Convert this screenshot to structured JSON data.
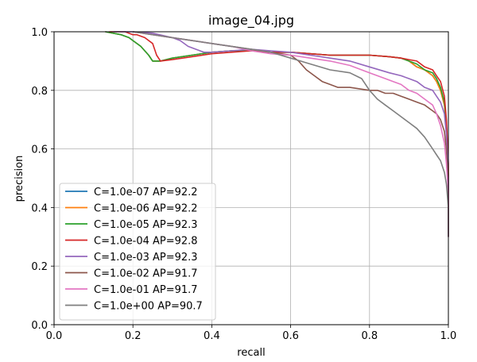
{
  "chart_data": {
    "type": "line",
    "title": "image_04.jpg",
    "xlabel": "recall",
    "ylabel": "precision",
    "xlim": [
      0.0,
      1.0
    ],
    "ylim": [
      0.0,
      1.0
    ],
    "xticks": [
      "0.0",
      "0.2",
      "0.4",
      "0.6",
      "0.8",
      "1.0"
    ],
    "yticks": [
      "0.0",
      "0.2",
      "0.4",
      "0.6",
      "0.8",
      "1.0"
    ],
    "grid": true,
    "legend_position": "lower-left",
    "series": [
      {
        "name": "C=1.0e-07 AP=92.2",
        "color": "#1f77b4",
        "x": [
          0.13,
          0.17,
          0.19,
          0.2,
          0.22,
          0.24,
          0.25,
          0.27,
          0.3,
          0.35,
          0.4,
          0.45,
          0.5,
          0.55,
          0.6,
          0.65,
          0.7,
          0.75,
          0.8,
          0.85,
          0.88,
          0.9,
          0.92,
          0.94,
          0.96,
          0.97,
          0.98,
          0.99,
          0.995,
          1.0,
          1.0
        ],
        "y": [
          1.0,
          0.99,
          0.98,
          0.97,
          0.95,
          0.92,
          0.9,
          0.9,
          0.91,
          0.92,
          0.93,
          0.935,
          0.935,
          0.93,
          0.93,
          0.925,
          0.92,
          0.92,
          0.92,
          0.915,
          0.91,
          0.9,
          0.88,
          0.87,
          0.85,
          0.83,
          0.8,
          0.75,
          0.68,
          0.5,
          0.3
        ]
      },
      {
        "name": "C=1.0e-06 AP=92.2",
        "color": "#ff7f0e",
        "x": [
          0.13,
          0.17,
          0.19,
          0.2,
          0.22,
          0.24,
          0.25,
          0.27,
          0.3,
          0.35,
          0.4,
          0.45,
          0.5,
          0.55,
          0.6,
          0.65,
          0.7,
          0.75,
          0.8,
          0.85,
          0.88,
          0.9,
          0.92,
          0.94,
          0.96,
          0.97,
          0.98,
          0.99,
          0.995,
          1.0,
          1.0
        ],
        "y": [
          1.0,
          0.99,
          0.98,
          0.97,
          0.95,
          0.92,
          0.9,
          0.9,
          0.91,
          0.92,
          0.93,
          0.935,
          0.935,
          0.93,
          0.93,
          0.925,
          0.92,
          0.92,
          0.92,
          0.915,
          0.91,
          0.9,
          0.88,
          0.87,
          0.85,
          0.83,
          0.8,
          0.75,
          0.68,
          0.5,
          0.3
        ]
      },
      {
        "name": "C=1.0e-05 AP=92.3",
        "color": "#2ca02c",
        "x": [
          0.13,
          0.17,
          0.19,
          0.2,
          0.22,
          0.24,
          0.25,
          0.27,
          0.3,
          0.35,
          0.4,
          0.45,
          0.5,
          0.55,
          0.6,
          0.65,
          0.7,
          0.75,
          0.8,
          0.85,
          0.88,
          0.9,
          0.92,
          0.94,
          0.96,
          0.97,
          0.98,
          0.99,
          0.995,
          1.0,
          1.0
        ],
        "y": [
          1.0,
          0.99,
          0.98,
          0.97,
          0.95,
          0.92,
          0.9,
          0.9,
          0.91,
          0.92,
          0.93,
          0.935,
          0.935,
          0.93,
          0.93,
          0.925,
          0.92,
          0.92,
          0.92,
          0.915,
          0.91,
          0.9,
          0.89,
          0.87,
          0.86,
          0.84,
          0.81,
          0.76,
          0.69,
          0.5,
          0.3
        ]
      },
      {
        "name": "C=1.0e-04 AP=92.8",
        "color": "#d62728",
        "x": [
          0.14,
          0.18,
          0.2,
          0.21,
          0.23,
          0.25,
          0.26,
          0.27,
          0.3,
          0.35,
          0.4,
          0.45,
          0.5,
          0.55,
          0.6,
          0.65,
          0.7,
          0.75,
          0.8,
          0.85,
          0.88,
          0.9,
          0.92,
          0.94,
          0.96,
          0.97,
          0.98,
          0.99,
          0.995,
          1.0,
          1.0
        ],
        "y": [
          1.0,
          1.0,
          0.99,
          0.99,
          0.98,
          0.96,
          0.92,
          0.9,
          0.905,
          0.915,
          0.925,
          0.93,
          0.935,
          0.93,
          0.93,
          0.925,
          0.92,
          0.92,
          0.92,
          0.915,
          0.91,
          0.905,
          0.9,
          0.88,
          0.87,
          0.85,
          0.83,
          0.78,
          0.7,
          0.55,
          0.3
        ]
      },
      {
        "name": "C=1.0e-03 AP=92.3",
        "color": "#9467bd",
        "x": [
          0.15,
          0.2,
          0.25,
          0.3,
          0.32,
          0.34,
          0.36,
          0.38,
          0.4,
          0.45,
          0.5,
          0.55,
          0.6,
          0.65,
          0.7,
          0.75,
          0.8,
          0.85,
          0.88,
          0.9,
          0.92,
          0.94,
          0.96,
          0.97,
          0.98,
          0.99,
          0.995,
          1.0,
          1.0
        ],
        "y": [
          1.0,
          1.0,
          0.995,
          0.98,
          0.97,
          0.95,
          0.94,
          0.93,
          0.93,
          0.935,
          0.94,
          0.935,
          0.93,
          0.92,
          0.91,
          0.9,
          0.88,
          0.86,
          0.85,
          0.84,
          0.83,
          0.81,
          0.8,
          0.78,
          0.76,
          0.72,
          0.65,
          0.5,
          0.3
        ]
      },
      {
        "name": "C=1.0e-02 AP=91.7",
        "color": "#8c564b",
        "x": [
          0.2,
          0.3,
          0.4,
          0.45,
          0.5,
          0.55,
          0.6,
          0.62,
          0.64,
          0.66,
          0.68,
          0.7,
          0.72,
          0.75,
          0.8,
          0.82,
          0.84,
          0.86,
          0.88,
          0.9,
          0.92,
          0.94,
          0.96,
          0.97,
          0.98,
          0.99,
          0.995,
          1.0,
          1.0
        ],
        "y": [
          1.0,
          0.98,
          0.96,
          0.95,
          0.94,
          0.93,
          0.92,
          0.9,
          0.87,
          0.85,
          0.83,
          0.82,
          0.81,
          0.81,
          0.8,
          0.8,
          0.79,
          0.79,
          0.78,
          0.77,
          0.76,
          0.75,
          0.73,
          0.72,
          0.7,
          0.66,
          0.6,
          0.45,
          0.3
        ]
      },
      {
        "name": "C=1.0e-01 AP=91.7",
        "color": "#e377c2",
        "x": [
          0.2,
          0.3,
          0.4,
          0.45,
          0.5,
          0.55,
          0.6,
          0.65,
          0.7,
          0.75,
          0.8,
          0.82,
          0.84,
          0.86,
          0.88,
          0.9,
          0.92,
          0.94,
          0.95,
          0.96,
          0.97,
          0.98,
          0.99,
          0.995,
          1.0,
          1.0
        ],
        "y": [
          1.0,
          0.98,
          0.96,
          0.95,
          0.935,
          0.925,
          0.92,
          0.91,
          0.9,
          0.885,
          0.86,
          0.85,
          0.84,
          0.83,
          0.82,
          0.8,
          0.79,
          0.77,
          0.76,
          0.75,
          0.72,
          0.68,
          0.62,
          0.55,
          0.45,
          0.3
        ]
      },
      {
        "name": "C=1.0e+00 AP=90.7",
        "color": "#7f7f7f",
        "x": [
          0.2,
          0.3,
          0.4,
          0.45,
          0.5,
          0.55,
          0.6,
          0.65,
          0.7,
          0.75,
          0.78,
          0.8,
          0.82,
          0.84,
          0.86,
          0.88,
          0.9,
          0.92,
          0.94,
          0.95,
          0.96,
          0.97,
          0.98,
          0.99,
          0.995,
          1.0,
          1.0
        ],
        "y": [
          1.0,
          0.98,
          0.96,
          0.95,
          0.94,
          0.93,
          0.91,
          0.89,
          0.87,
          0.86,
          0.84,
          0.8,
          0.77,
          0.75,
          0.73,
          0.71,
          0.69,
          0.67,
          0.64,
          0.62,
          0.6,
          0.58,
          0.56,
          0.52,
          0.48,
          0.4,
          0.3
        ]
      }
    ]
  }
}
